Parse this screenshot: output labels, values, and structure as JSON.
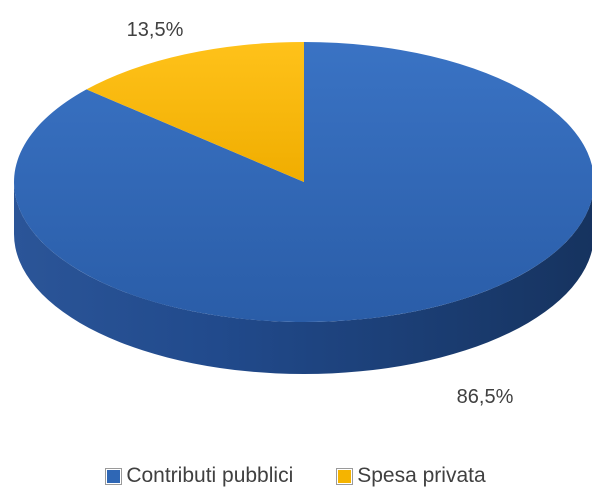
{
  "chart_data": {
    "type": "pie",
    "categories": [
      "Contributi pubblici",
      "Spesa privata"
    ],
    "values": [
      86.5,
      13.5
    ],
    "data_labels": [
      "86,5%",
      "13,5%"
    ],
    "colors": [
      "#2f67b5",
      "#f5b400"
    ],
    "legend_position": "bottom",
    "style": "3d"
  }
}
